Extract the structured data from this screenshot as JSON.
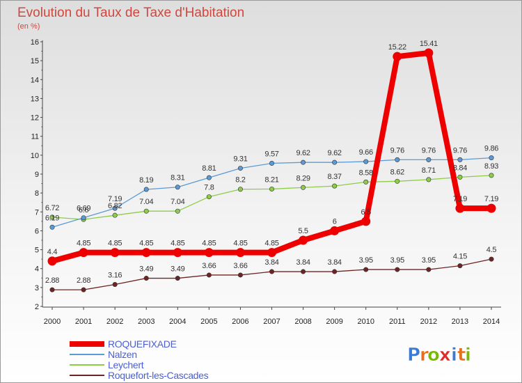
{
  "title": "Evolution du Taux de Taxe d'Habitation",
  "subtitle": "(en %)",
  "logo": {
    "letters": [
      "P",
      "r",
      "o",
      "x",
      "i",
      "t",
      "i"
    ],
    "colors": [
      "#3a7bd5",
      "#e2701e",
      "#7ab800",
      "#e02a2a",
      "#3a7bd5",
      "#e2701e",
      "#7ab800"
    ]
  },
  "chart_data": {
    "type": "line",
    "x": [
      "2000",
      "2001",
      "2002",
      "2003",
      "2004",
      "2005",
      "2006",
      "2007",
      "2008",
      "2009",
      "2010",
      "2011",
      "2012",
      "2013",
      "2014"
    ],
    "ylim": [
      2,
      16
    ],
    "yticks": [
      "2",
      "3",
      "4",
      "5",
      "6",
      "7",
      "8",
      "9",
      "10",
      "11",
      "12",
      "13",
      "14",
      "15",
      "16"
    ],
    "grid": false,
    "legend_position": "bottom-left",
    "series": [
      {
        "name": "ROQUEFIXADE",
        "color": "#ee0000",
        "width": 8,
        "values": [
          4.4,
          4.85,
          4.85,
          4.85,
          4.85,
          4.85,
          4.85,
          4.85,
          5.5,
          6,
          6.5,
          15.22,
          15.41,
          7.19,
          7.19
        ],
        "labels": [
          "4.4",
          "4.85",
          "4.85",
          "4.85",
          "4.85",
          "4.85",
          "4.85",
          "4.85",
          "5.5",
          "6",
          "6.5",
          "15.22",
          "15.41",
          "7.19",
          "7.19"
        ]
      },
      {
        "name": "Nalzen",
        "color": "#5b9ad5",
        "width": 1.3,
        "values": [
          6.19,
          6.69,
          7.19,
          8.19,
          8.31,
          8.81,
          9.31,
          9.57,
          9.62,
          9.62,
          9.66,
          9.76,
          9.76,
          9.76,
          9.86
        ],
        "labels": [
          "6.19",
          "6.69",
          "7.19",
          "8.19",
          "8.31",
          "8.81",
          "9.31",
          "9.57",
          "9.62",
          "9.62",
          "9.66",
          "9.76",
          "9.76",
          "9.76",
          "9.86"
        ]
      },
      {
        "name": "Leychert",
        "color": "#8ccd45",
        "width": 1.3,
        "values": [
          6.72,
          6.6,
          6.82,
          7.04,
          7.04,
          7.8,
          8.2,
          8.21,
          8.29,
          8.37,
          8.58,
          8.62,
          8.71,
          8.84,
          8.93
        ],
        "labels": [
          "6.72",
          "6.6",
          "6.82",
          "7.04",
          "7.04",
          "7.8",
          "8.2",
          "8.21",
          "8.29",
          "8.37",
          "8.58",
          "8.62",
          "8.71",
          "8.84",
          "8.93"
        ]
      },
      {
        "name": "Roquefort-les-Cascades",
        "color": "#6e2424",
        "width": 1.3,
        "values": [
          2.88,
          2.88,
          3.16,
          3.49,
          3.49,
          3.66,
          3.66,
          3.84,
          3.84,
          3.84,
          3.95,
          3.95,
          3.95,
          4.15,
          4.5
        ],
        "labels": [
          "2.88",
          "2.88",
          "3.16",
          "3.49",
          "3.49",
          "3.66",
          "3.66",
          "3.84",
          "3.84",
          "3.84",
          "3.95",
          "3.95",
          "3.95",
          "4.15",
          "4.5"
        ]
      }
    ]
  }
}
